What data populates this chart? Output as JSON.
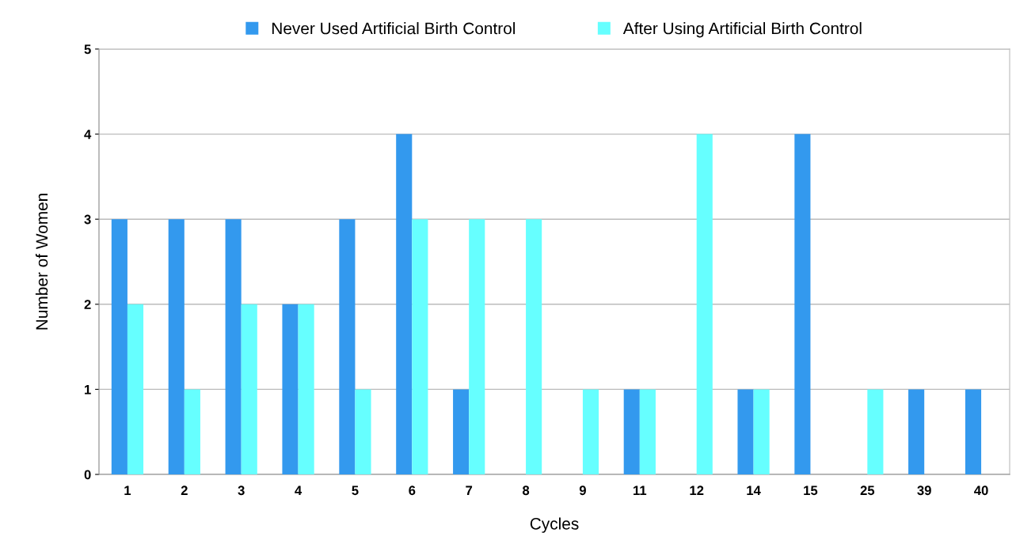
{
  "chart_data": {
    "type": "bar",
    "xlabel": "Cycles",
    "ylabel": "Number of Women",
    "categories": [
      "1",
      "2",
      "3",
      "4",
      "5",
      "6",
      "7",
      "8",
      "9",
      "11",
      "12",
      "14",
      "15",
      "25",
      "39",
      "40"
    ],
    "series": [
      {
        "name": "Never Used Artificial Birth Control",
        "color": "#3399ee",
        "values": [
          3,
          3,
          3,
          2,
          3,
          4,
          1,
          0,
          0,
          1,
          0,
          1,
          4,
          0,
          1,
          1
        ]
      },
      {
        "name": "After Using Artificial Birth Control",
        "color": "#66ffff",
        "values": [
          2,
          1,
          2,
          2,
          1,
          3,
          3,
          3,
          1,
          1,
          4,
          1,
          0,
          1,
          0,
          0
        ]
      }
    ],
    "ylim": [
      0,
      5
    ],
    "yticks": [
      0,
      1,
      2,
      3,
      4,
      5
    ],
    "grid": "y",
    "legend": "top"
  }
}
